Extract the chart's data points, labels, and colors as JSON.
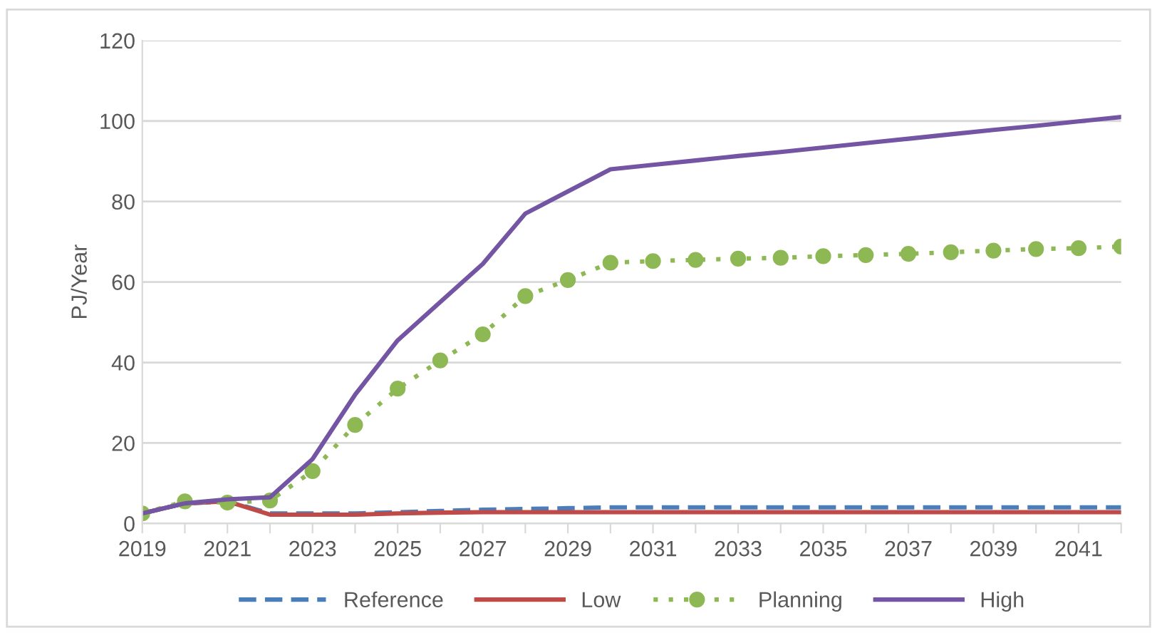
{
  "chart_data": {
    "type": "line",
    "ylabel": "PJ/Year",
    "categories": [
      "2019",
      null,
      "2021",
      null,
      "2023",
      null,
      "2025",
      null,
      "2027",
      null,
      "2029",
      null,
      "2031",
      null,
      "2033",
      null,
      "2035",
      null,
      "2037",
      null,
      "2039",
      null,
      "2041",
      null
    ],
    "ylim": [
      0,
      120
    ],
    "yticks": [
      0,
      20,
      40,
      60,
      80,
      100,
      120
    ],
    "grid": "y",
    "legend": "bottom",
    "series": [
      {
        "name": "Reference",
        "color": "#4a7ebb",
        "line_style": "dashed",
        "marker": "none",
        "values": [
          2.5,
          5,
          5.5,
          2.5,
          2.5,
          2.5,
          2.8,
          3.1,
          3.4,
          3.6,
          3.8,
          4,
          4,
          4,
          4,
          4,
          4,
          4,
          4,
          4,
          4,
          4,
          4,
          4
        ]
      },
      {
        "name": "Low",
        "color": "#be4b48",
        "line_style": "solid",
        "marker": "none",
        "values": [
          2.5,
          5,
          5.5,
          2.2,
          2.2,
          2.2,
          2.5,
          2.7,
          2.8,
          2.8,
          2.8,
          2.8,
          2.8,
          2.8,
          2.8,
          2.8,
          2.8,
          2.8,
          2.8,
          2.8,
          2.8,
          2.8,
          2.8,
          2.8
        ]
      },
      {
        "name": "Planning",
        "color": "#8db854",
        "line_style": "dotted",
        "marker": "circle",
        "values": [
          2.5,
          5.5,
          5.2,
          5.7,
          13,
          24.5,
          33.5,
          40.5,
          47,
          56.5,
          60.5,
          64.8,
          65.2,
          65.5,
          65.8,
          66,
          66.4,
          66.7,
          67,
          67.4,
          67.8,
          68.2,
          68.4,
          68.8
        ]
      },
      {
        "name": "High",
        "color": "#7355a3",
        "line_style": "solid",
        "marker": "none",
        "values": [
          2.5,
          5,
          6,
          6.5,
          16,
          32,
          45.5,
          55,
          64.5,
          77,
          82.5,
          88,
          89.1,
          90.2,
          91.3,
          92.3,
          93.4,
          94.5,
          95.6,
          96.7,
          97.8,
          98.8,
          99.9,
          101
        ]
      }
    ]
  }
}
